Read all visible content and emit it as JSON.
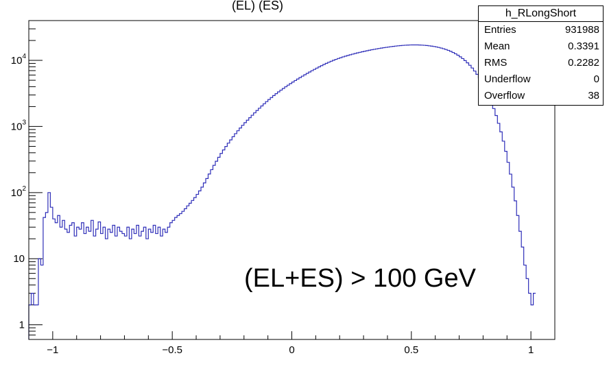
{
  "chart_data": {
    "type": "histogram",
    "title": "(EL) (ES)",
    "annotation": "(EL+ES) > 100 GeV",
    "xlim": [
      -1.1,
      1.1
    ],
    "ylim": [
      0.6,
      40000
    ],
    "y_scale": "log",
    "line_color": "#2d2db8",
    "x_ticks": [
      "−1",
      "−0.5",
      "0",
      "0.5",
      "1"
    ],
    "y_ticks": [
      {
        "base": "1",
        "exp": ""
      },
      {
        "base": "10",
        "exp": ""
      },
      {
        "base": "10",
        "exp": "2"
      },
      {
        "base": "10",
        "exp": "3"
      },
      {
        "base": "10",
        "exp": "4"
      }
    ],
    "bins_x": [
      -1.1,
      -1.09,
      -1.08,
      -1.07,
      -1.06,
      -1.05,
      -1.04,
      -1.03,
      -1.02,
      -1.01,
      -1.0,
      -0.99,
      -0.98,
      -0.97,
      -0.96,
      -0.95,
      -0.94,
      -0.93,
      -0.92,
      -0.91,
      -0.9,
      -0.89,
      -0.88,
      -0.87,
      -0.86,
      -0.85,
      -0.84,
      -0.83,
      -0.82,
      -0.81,
      -0.8,
      -0.79,
      -0.78,
      -0.77,
      -0.76,
      -0.75,
      -0.74,
      -0.73,
      -0.72,
      -0.71,
      -0.7,
      -0.69,
      -0.68,
      -0.67,
      -0.66,
      -0.65,
      -0.64,
      -0.63,
      -0.62,
      -0.61,
      -0.6,
      -0.59,
      -0.58,
      -0.57,
      -0.56,
      -0.55,
      -0.54,
      -0.53,
      -0.52,
      -0.51,
      -0.5,
      -0.49,
      -0.48,
      -0.47,
      -0.46,
      -0.45,
      -0.44,
      -0.43,
      -0.42,
      -0.41,
      -0.4,
      -0.39,
      -0.38,
      -0.37,
      -0.36,
      -0.35,
      -0.34,
      -0.33,
      -0.32,
      -0.31,
      -0.3,
      -0.29,
      -0.28,
      -0.27,
      -0.26,
      -0.25,
      -0.24,
      -0.23,
      -0.22,
      -0.21,
      -0.2,
      -0.19,
      -0.18,
      -0.17,
      -0.16,
      -0.15,
      -0.14,
      -0.13,
      -0.12,
      -0.11,
      -0.1,
      -0.09,
      -0.08,
      -0.07,
      -0.06,
      -0.05,
      -0.04,
      -0.03,
      -0.02,
      -0.01,
      0.0,
      0.01,
      0.02,
      0.03,
      0.04,
      0.05,
      0.06,
      0.07,
      0.08,
      0.09,
      0.1,
      0.11,
      0.12,
      0.13,
      0.14,
      0.15,
      0.16,
      0.17,
      0.18,
      0.19,
      0.2,
      0.21,
      0.22,
      0.23,
      0.24,
      0.25,
      0.26,
      0.27,
      0.28,
      0.29,
      0.3,
      0.31,
      0.32,
      0.33,
      0.34,
      0.35,
      0.36,
      0.37,
      0.38,
      0.39,
      0.4,
      0.41,
      0.42,
      0.43,
      0.44,
      0.45,
      0.46,
      0.47,
      0.48,
      0.49,
      0.5,
      0.51,
      0.52,
      0.53,
      0.54,
      0.55,
      0.56,
      0.57,
      0.58,
      0.59,
      0.6,
      0.61,
      0.62,
      0.63,
      0.64,
      0.65,
      0.66,
      0.67,
      0.68,
      0.69,
      0.7,
      0.71,
      0.72,
      0.73,
      0.74,
      0.75,
      0.76,
      0.77,
      0.78,
      0.79,
      0.8,
      0.81,
      0.82,
      0.83,
      0.84,
      0.85,
      0.86,
      0.87,
      0.88,
      0.89,
      0.9,
      0.91,
      0.92,
      0.93,
      0.94,
      0.95,
      0.96,
      0.97,
      0.98,
      0.99,
      1.0,
      1.01,
      1.02,
      1.03,
      1.04,
      1.05,
      1.06,
      1.07,
      1.08,
      1.09
    ],
    "bins_y": [
      2,
      3,
      2,
      2,
      10,
      8,
      42,
      50,
      100,
      60,
      40,
      35,
      45,
      30,
      38,
      28,
      25,
      32,
      35,
      22,
      30,
      28,
      35,
      24,
      30,
      26,
      38,
      22,
      28,
      36,
      24,
      30,
      20,
      28,
      25,
      32,
      22,
      30,
      26,
      24,
      22,
      30,
      20,
      28,
      24,
      32,
      22,
      26,
      30,
      20,
      28,
      25,
      32,
      24,
      30,
      22,
      28,
      25,
      30,
      35,
      38,
      42,
      45,
      48,
      52,
      57,
      63,
      69,
      76,
      84,
      94,
      106,
      121,
      140,
      163,
      191,
      222,
      258,
      298,
      342,
      391,
      442,
      498,
      560,
      627,
      700,
      778,
      861,
      949,
      1042,
      1141,
      1246,
      1359,
      1479,
      1607,
      1744,
      1889,
      2043,
      2206,
      2377,
      2555,
      2740,
      2932,
      3130,
      3334,
      3544,
      3761,
      3985,
      4216,
      4455,
      4701,
      4956,
      5219,
      5490,
      5770,
      6059,
      6357,
      6664,
      6981,
      7306,
      7638,
      7977,
      8320,
      8666,
      9012,
      9355,
      9695,
      10029,
      10356,
      10674,
      10985,
      11288,
      11584,
      11873,
      12156,
      12433,
      12706,
      12973,
      13236,
      13494,
      13746,
      13992,
      14232,
      14466,
      14693,
      14915,
      15131,
      15341,
      15545,
      15742,
      15931,
      16112,
      16285,
      16449,
      16601,
      16739,
      16860,
      16962,
      17043,
      17100,
      17133,
      17140,
      17120,
      17073,
      16999,
      16898,
      16769,
      16612,
      16426,
      16210,
      15961,
      15678,
      15360,
      15002,
      14604,
      14164,
      13681,
      13154,
      12583,
      11971,
      11320,
      10634,
      9918,
      9179,
      8425,
      7664,
      6904,
      6153,
      5421,
      4717,
      4049,
      3425,
      2850,
      2330,
      1867,
      1463,
      1117,
      830,
      600,
      421,
      287,
      190,
      121,
      75,
      45,
      26,
      15,
      8,
      5,
      3,
      2,
      3
    ]
  },
  "stats_box": {
    "title": "h_RLongShort",
    "rows": [
      {
        "label": "Entries",
        "value": "931988"
      },
      {
        "label": "Mean",
        "value": "0.3391"
      },
      {
        "label": "RMS",
        "value": "0.2282"
      },
      {
        "label": "Underflow",
        "value": "0"
      },
      {
        "label": "Overflow",
        "value": "38"
      }
    ]
  }
}
